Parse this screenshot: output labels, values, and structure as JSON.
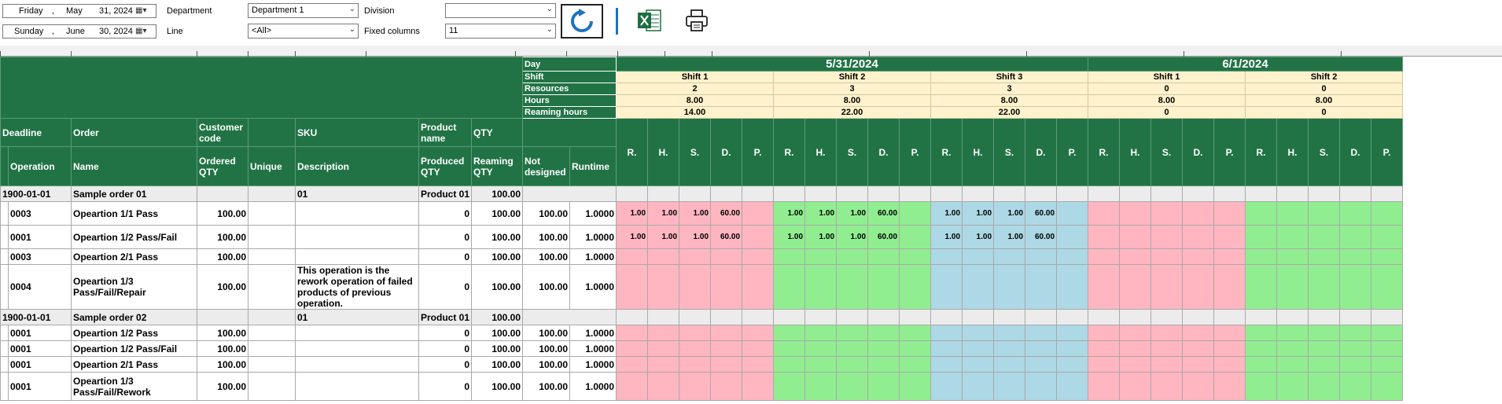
{
  "toolbar": {
    "date_from": {
      "weekday": "Friday",
      "month": "May",
      "day": "31, 2024"
    },
    "date_to": {
      "weekday": "Sunday",
      "month": "June",
      "day": "30, 2024"
    },
    "department_label": "Department",
    "department_value": "Department 1",
    "line_label": "Line",
    "line_value": "<All>",
    "division_label": "Division",
    "division_value": "",
    "fixed_columns_label": "Fixed columns",
    "fixed_columns_value": "11"
  },
  "info_labels": [
    "Day",
    "Shift",
    "Resources",
    "Hours",
    "Reaming hours"
  ],
  "days": [
    "5/31/2024",
    "6/1/2024"
  ],
  "shifts": [
    {
      "name": "Shift 1",
      "resources": "2",
      "hours": "8.00",
      "remaining": "14.00"
    },
    {
      "name": "Shift 2",
      "resources": "3",
      "hours": "8.00",
      "remaining": "22.00"
    },
    {
      "name": "Shift 3",
      "resources": "3",
      "hours": "8.00",
      "remaining": "22.00"
    },
    {
      "name": "Shift 1",
      "resources": "0",
      "hours": "8.00",
      "remaining": "0"
    },
    {
      "name": "Shift 2",
      "resources": "0",
      "hours": "8.00",
      "remaining": "0"
    }
  ],
  "shift_subcols": [
    "R.",
    "H.",
    "S.",
    "D.",
    "P."
  ],
  "headers": {
    "deadline": "Deadline",
    "order": "Order",
    "customer_code": "Customer code",
    "sku": "SKU",
    "product_name": "Product name",
    "qty": "QTY",
    "operation": "Operation",
    "name": "Name",
    "ordered_qty": "Ordered QTY",
    "unique": "Unique",
    "description": "Description",
    "produced_qty": "Produced QTY",
    "reaming_qty": "Reaming QTY",
    "not_designed": "Not designed",
    "runtime": "Runtime"
  },
  "orders": [
    {
      "deadline": "1900-01-01",
      "order": "Sample order 01",
      "sku": "01",
      "product": "Product 01",
      "qty": "100.00",
      "ops": [
        {
          "op": "0003",
          "name": "Opeartion 1/1 Pass",
          "ordered": "100.00",
          "desc": "",
          "produced": "0",
          "reaming": "100.00",
          "notdes": "100.00",
          "runtime": "1.0000",
          "cells": [
            [
              "1.00",
              "1.00",
              "1.00",
              "60.00",
              ""
            ],
            [
              "1.00",
              "1.00",
              "1.00",
              "60.00",
              ""
            ],
            [
              "1.00",
              "1.00",
              "1.00",
              "60.00",
              ""
            ]
          ]
        },
        {
          "op": "0001",
          "name": "Opeartion 1/2 Pass/Fail",
          "ordered": "100.00",
          "desc": "",
          "produced": "0",
          "reaming": "100.00",
          "notdes": "100.00",
          "runtime": "1.0000",
          "cells": [
            [
              "1.00",
              "1.00",
              "1.00",
              "60.00",
              ""
            ],
            [
              "1.00",
              "1.00",
              "1.00",
              "60.00",
              ""
            ],
            [
              "1.00",
              "1.00",
              "1.00",
              "60.00",
              ""
            ]
          ]
        },
        {
          "op": "0003",
          "name": "Opeartion 2/1 Pass",
          "ordered": "100.00",
          "desc": "",
          "produced": "0",
          "reaming": "100.00",
          "notdes": "100.00",
          "runtime": "1.0000",
          "cells": []
        },
        {
          "op": "0004",
          "name": "Opeartion 1/3 Pass/Fail/Repair",
          "ordered": "100.00",
          "desc": "This operation is the rework operation of failed products of previous operation.",
          "produced": "0",
          "reaming": "100.00",
          "notdes": "100.00",
          "runtime": "1.0000",
          "cells": []
        }
      ]
    },
    {
      "deadline": "1900-01-01",
      "order": "Sample order 02",
      "sku": "01",
      "product": "Product 01",
      "qty": "100.00",
      "ops": [
        {
          "op": "0001",
          "name": "Opeartion 1/2 Pass",
          "ordered": "100.00",
          "desc": "",
          "produced": "0",
          "reaming": "100.00",
          "notdes": "100.00",
          "runtime": "1.0000",
          "cells": []
        },
        {
          "op": "0001",
          "name": "Opeartion 1/2 Pass/Fail",
          "ordered": "100.00",
          "desc": "",
          "produced": "0",
          "reaming": "100.00",
          "notdes": "100.00",
          "runtime": "1.0000",
          "cells": []
        },
        {
          "op": "0001",
          "name": "Opeartion 2/1 Pass",
          "ordered": "100.00",
          "desc": "",
          "produced": "0",
          "reaming": "100.00",
          "notdes": "100.00",
          "runtime": "1.0000",
          "cells": []
        },
        {
          "op": "0001",
          "name": "Opeartion 1/3 Pass/Fail/Rework",
          "ordered": "100.00",
          "desc": "",
          "produced": "0",
          "reaming": "100.00",
          "notdes": "100.00",
          "runtime": "1.0000",
          "cells": []
        }
      ]
    }
  ],
  "colors": {
    "header_green": "#217346",
    "shift_yellow": "#fff2cc",
    "pink": "#ffb6c1",
    "green": "#90ee90",
    "blue": "#add8e6"
  }
}
